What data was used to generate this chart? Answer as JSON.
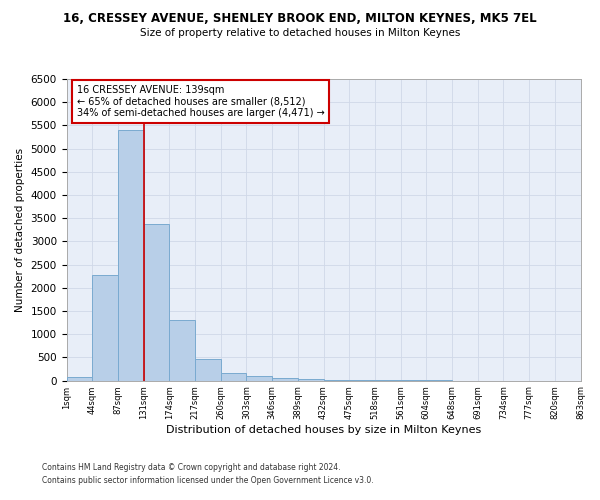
{
  "title": "16, CRESSEY AVENUE, SHENLEY BROOK END, MILTON KEYNES, MK5 7EL",
  "subtitle": "Size of property relative to detached houses in Milton Keynes",
  "xlabel": "Distribution of detached houses by size in Milton Keynes",
  "ylabel": "Number of detached properties",
  "footnote1": "Contains HM Land Registry data © Crown copyright and database right 2024.",
  "footnote2": "Contains public sector information licensed under the Open Government Licence v3.0.",
  "bin_labels": [
    "1sqm",
    "44sqm",
    "87sqm",
    "131sqm",
    "174sqm",
    "217sqm",
    "260sqm",
    "303sqm",
    "346sqm",
    "389sqm",
    "432sqm",
    "475sqm",
    "518sqm",
    "561sqm",
    "604sqm",
    "648sqm",
    "691sqm",
    "734sqm",
    "777sqm",
    "820sqm",
    "863sqm"
  ],
  "bar_values": [
    75,
    2280,
    5400,
    3380,
    1310,
    470,
    165,
    90,
    55,
    30,
    15,
    8,
    5,
    3,
    2,
    1,
    1,
    0,
    0,
    0
  ],
  "bar_color": "#b8cfe8",
  "bar_edge_color": "#7aaad0",
  "grid_color": "#d0d8e8",
  "background_color": "#e8eef8",
  "red_line_x": 3,
  "annotation_text": "16 CRESSEY AVENUE: 139sqm\n← 65% of detached houses are smaller (8,512)\n34% of semi-detached houses are larger (4,471) →",
  "annotation_box_color": "#ffffff",
  "annotation_box_edge": "#cc0000",
  "red_line_color": "#cc0000",
  "ylim": [
    0,
    6500
  ],
  "yticks": [
    0,
    500,
    1000,
    1500,
    2000,
    2500,
    3000,
    3500,
    4000,
    4500,
    5000,
    5500,
    6000,
    6500
  ]
}
